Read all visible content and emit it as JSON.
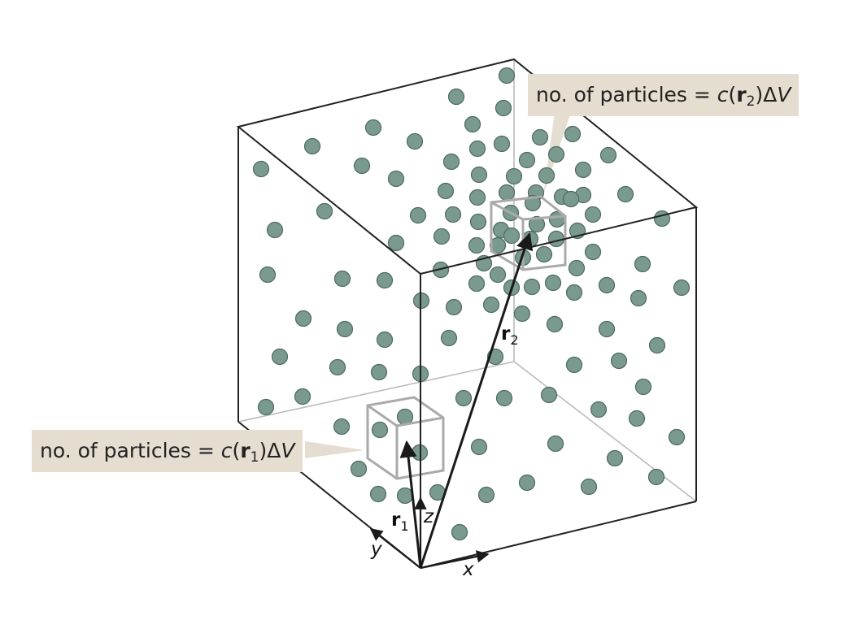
{
  "callouts": {
    "top": {
      "prefix": "no. of particles = ",
      "c": "c",
      "open": "(",
      "r": "r",
      "sub": "2",
      "close": ")",
      "delta": "Δ",
      "V": "V"
    },
    "bottom": {
      "prefix": "no. of particles = ",
      "c": "c",
      "open": "(",
      "r": "r",
      "sub": "1",
      "close": ")",
      "delta": "Δ",
      "V": "V"
    }
  },
  "labels": {
    "r2": {
      "r": "r",
      "sub": "2"
    },
    "r1": {
      "r": "r",
      "sub": "1"
    },
    "x": "x",
    "y": "y",
    "z": "z"
  },
  "colors": {
    "particle": "#7a9a90",
    "particle_stroke": "#4c6a60",
    "callout_bg": "#e4ddd0",
    "edge": "#222222",
    "hidden_edge": "#bbbbbb",
    "small_box": "#aaaaaa"
  }
}
